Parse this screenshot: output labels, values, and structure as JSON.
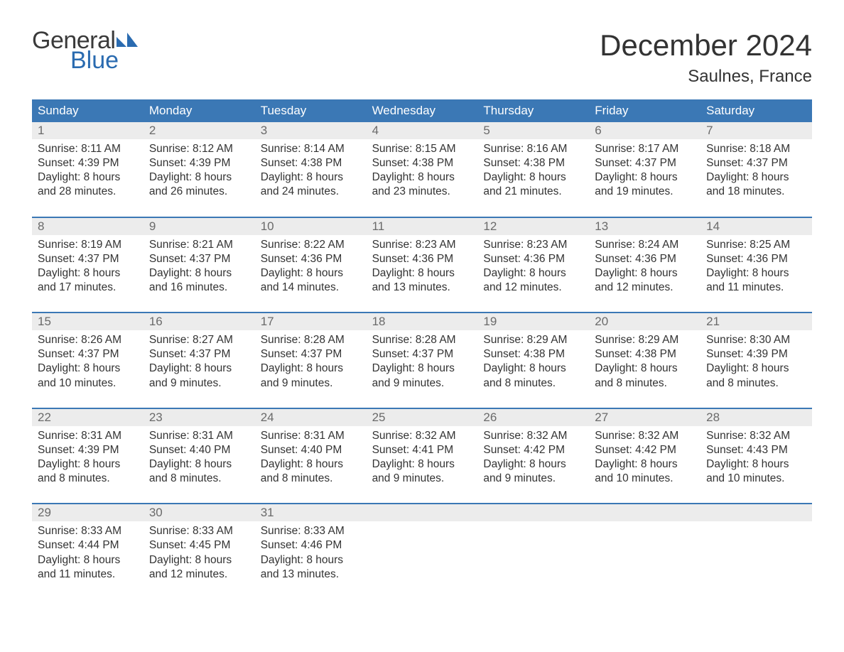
{
  "brand": {
    "word1": "General",
    "word2": "Blue",
    "accent_color": "#2a6bb0"
  },
  "title": "December 2024",
  "subtitle": "Saulnes, France",
  "colors": {
    "header_bg": "#3b78b5",
    "header_text": "#ffffff",
    "daynum_bg": "#ececec",
    "daynum_text": "#6a6a6a",
    "body_text": "#333333",
    "week_divider": "#3b78b5",
    "page_bg": "#ffffff"
  },
  "typography": {
    "title_fontsize": 42,
    "subtitle_fontsize": 24,
    "header_fontsize": 17,
    "daynum_fontsize": 17,
    "body_fontsize": 15.5
  },
  "day_headers": [
    "Sunday",
    "Monday",
    "Tuesday",
    "Wednesday",
    "Thursday",
    "Friday",
    "Saturday"
  ],
  "weeks": [
    [
      {
        "n": "1",
        "sunrise": "8:11 AM",
        "sunset": "4:39 PM",
        "daylight": "8 hours and 28 minutes."
      },
      {
        "n": "2",
        "sunrise": "8:12 AM",
        "sunset": "4:39 PM",
        "daylight": "8 hours and 26 minutes."
      },
      {
        "n": "3",
        "sunrise": "8:14 AM",
        "sunset": "4:38 PM",
        "daylight": "8 hours and 24 minutes."
      },
      {
        "n": "4",
        "sunrise": "8:15 AM",
        "sunset": "4:38 PM",
        "daylight": "8 hours and 23 minutes."
      },
      {
        "n": "5",
        "sunrise": "8:16 AM",
        "sunset": "4:38 PM",
        "daylight": "8 hours and 21 minutes."
      },
      {
        "n": "6",
        "sunrise": "8:17 AM",
        "sunset": "4:37 PM",
        "daylight": "8 hours and 19 minutes."
      },
      {
        "n": "7",
        "sunrise": "8:18 AM",
        "sunset": "4:37 PM",
        "daylight": "8 hours and 18 minutes."
      }
    ],
    [
      {
        "n": "8",
        "sunrise": "8:19 AM",
        "sunset": "4:37 PM",
        "daylight": "8 hours and 17 minutes."
      },
      {
        "n": "9",
        "sunrise": "8:21 AM",
        "sunset": "4:37 PM",
        "daylight": "8 hours and 16 minutes."
      },
      {
        "n": "10",
        "sunrise": "8:22 AM",
        "sunset": "4:36 PM",
        "daylight": "8 hours and 14 minutes."
      },
      {
        "n": "11",
        "sunrise": "8:23 AM",
        "sunset": "4:36 PM",
        "daylight": "8 hours and 13 minutes."
      },
      {
        "n": "12",
        "sunrise": "8:23 AM",
        "sunset": "4:36 PM",
        "daylight": "8 hours and 12 minutes."
      },
      {
        "n": "13",
        "sunrise": "8:24 AM",
        "sunset": "4:36 PM",
        "daylight": "8 hours and 12 minutes."
      },
      {
        "n": "14",
        "sunrise": "8:25 AM",
        "sunset": "4:36 PM",
        "daylight": "8 hours and 11 minutes."
      }
    ],
    [
      {
        "n": "15",
        "sunrise": "8:26 AM",
        "sunset": "4:37 PM",
        "daylight": "8 hours and 10 minutes."
      },
      {
        "n": "16",
        "sunrise": "8:27 AM",
        "sunset": "4:37 PM",
        "daylight": "8 hours and 9 minutes."
      },
      {
        "n": "17",
        "sunrise": "8:28 AM",
        "sunset": "4:37 PM",
        "daylight": "8 hours and 9 minutes."
      },
      {
        "n": "18",
        "sunrise": "8:28 AM",
        "sunset": "4:37 PM",
        "daylight": "8 hours and 9 minutes."
      },
      {
        "n": "19",
        "sunrise": "8:29 AM",
        "sunset": "4:38 PM",
        "daylight": "8 hours and 8 minutes."
      },
      {
        "n": "20",
        "sunrise": "8:29 AM",
        "sunset": "4:38 PM",
        "daylight": "8 hours and 8 minutes."
      },
      {
        "n": "21",
        "sunrise": "8:30 AM",
        "sunset": "4:39 PM",
        "daylight": "8 hours and 8 minutes."
      }
    ],
    [
      {
        "n": "22",
        "sunrise": "8:31 AM",
        "sunset": "4:39 PM",
        "daylight": "8 hours and 8 minutes."
      },
      {
        "n": "23",
        "sunrise": "8:31 AM",
        "sunset": "4:40 PM",
        "daylight": "8 hours and 8 minutes."
      },
      {
        "n": "24",
        "sunrise": "8:31 AM",
        "sunset": "4:40 PM",
        "daylight": "8 hours and 8 minutes."
      },
      {
        "n": "25",
        "sunrise": "8:32 AM",
        "sunset": "4:41 PM",
        "daylight": "8 hours and 9 minutes."
      },
      {
        "n": "26",
        "sunrise": "8:32 AM",
        "sunset": "4:42 PM",
        "daylight": "8 hours and 9 minutes."
      },
      {
        "n": "27",
        "sunrise": "8:32 AM",
        "sunset": "4:42 PM",
        "daylight": "8 hours and 10 minutes."
      },
      {
        "n": "28",
        "sunrise": "8:32 AM",
        "sunset": "4:43 PM",
        "daylight": "8 hours and 10 minutes."
      }
    ],
    [
      {
        "n": "29",
        "sunrise": "8:33 AM",
        "sunset": "4:44 PM",
        "daylight": "8 hours and 11 minutes."
      },
      {
        "n": "30",
        "sunrise": "8:33 AM",
        "sunset": "4:45 PM",
        "daylight": "8 hours and 12 minutes."
      },
      {
        "n": "31",
        "sunrise": "8:33 AM",
        "sunset": "4:46 PM",
        "daylight": "8 hours and 13 minutes."
      },
      null,
      null,
      null,
      null
    ]
  ],
  "labels": {
    "sunrise_prefix": "Sunrise: ",
    "sunset_prefix": "Sunset: ",
    "daylight_prefix": "Daylight: "
  }
}
